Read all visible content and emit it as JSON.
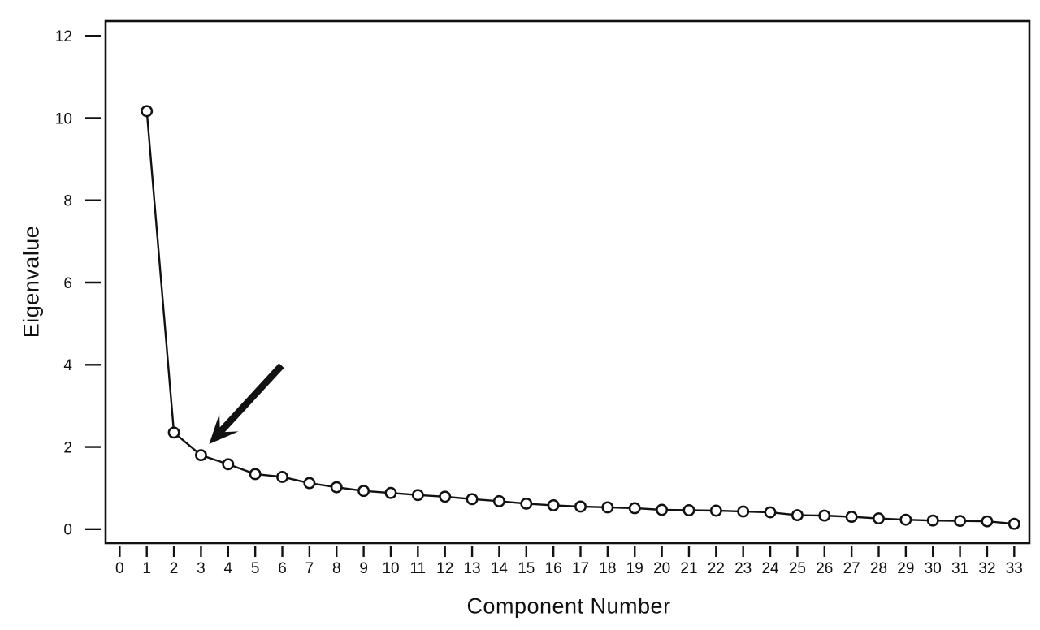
{
  "chart_data": {
    "type": "line",
    "title": "",
    "xlabel": "Component Number",
    "ylabel": "Eigenvalue",
    "x": [
      1,
      2,
      3,
      4,
      5,
      6,
      7,
      8,
      9,
      10,
      11,
      12,
      13,
      14,
      15,
      16,
      17,
      18,
      19,
      20,
      21,
      22,
      23,
      24,
      25,
      26,
      27,
      28,
      29,
      30,
      31,
      32,
      33
    ],
    "values": [
      10.17,
      2.35,
      1.8,
      1.58,
      1.34,
      1.27,
      1.12,
      1.02,
      0.93,
      0.88,
      0.83,
      0.79,
      0.73,
      0.68,
      0.62,
      0.58,
      0.55,
      0.53,
      0.51,
      0.47,
      0.46,
      0.45,
      0.43,
      0.41,
      0.34,
      0.33,
      0.3,
      0.26,
      0.23,
      0.21,
      0.2,
      0.19,
      0.13
    ],
    "x_ticks": [
      0,
      1,
      2,
      3,
      4,
      5,
      6,
      7,
      8,
      9,
      10,
      11,
      12,
      13,
      14,
      15,
      16,
      17,
      18,
      19,
      20,
      21,
      22,
      23,
      24,
      25,
      26,
      27,
      28,
      29,
      30,
      31,
      32,
      33
    ],
    "y_ticks": [
      0,
      2,
      4,
      6,
      8,
      10,
      12
    ],
    "xlim": [
      -0.52,
      33.56
    ],
    "ylim": [
      -0.34,
      12.36
    ],
    "grid": false,
    "legend": null,
    "marker": "open-circle",
    "line_color": "#111111",
    "marker_stroke_color": "#111111",
    "marker_fill_color": "#ffffff",
    "background_color": "#ffffff",
    "annotation": {
      "type": "arrow",
      "description": "thick black arrow pointing at the elbow of the scree curve",
      "points_at_component": 3,
      "from_xy": [
        5.97,
        3.98
      ],
      "to_xy": [
        3.3,
        2.07
      ],
      "color": "#111111"
    }
  }
}
